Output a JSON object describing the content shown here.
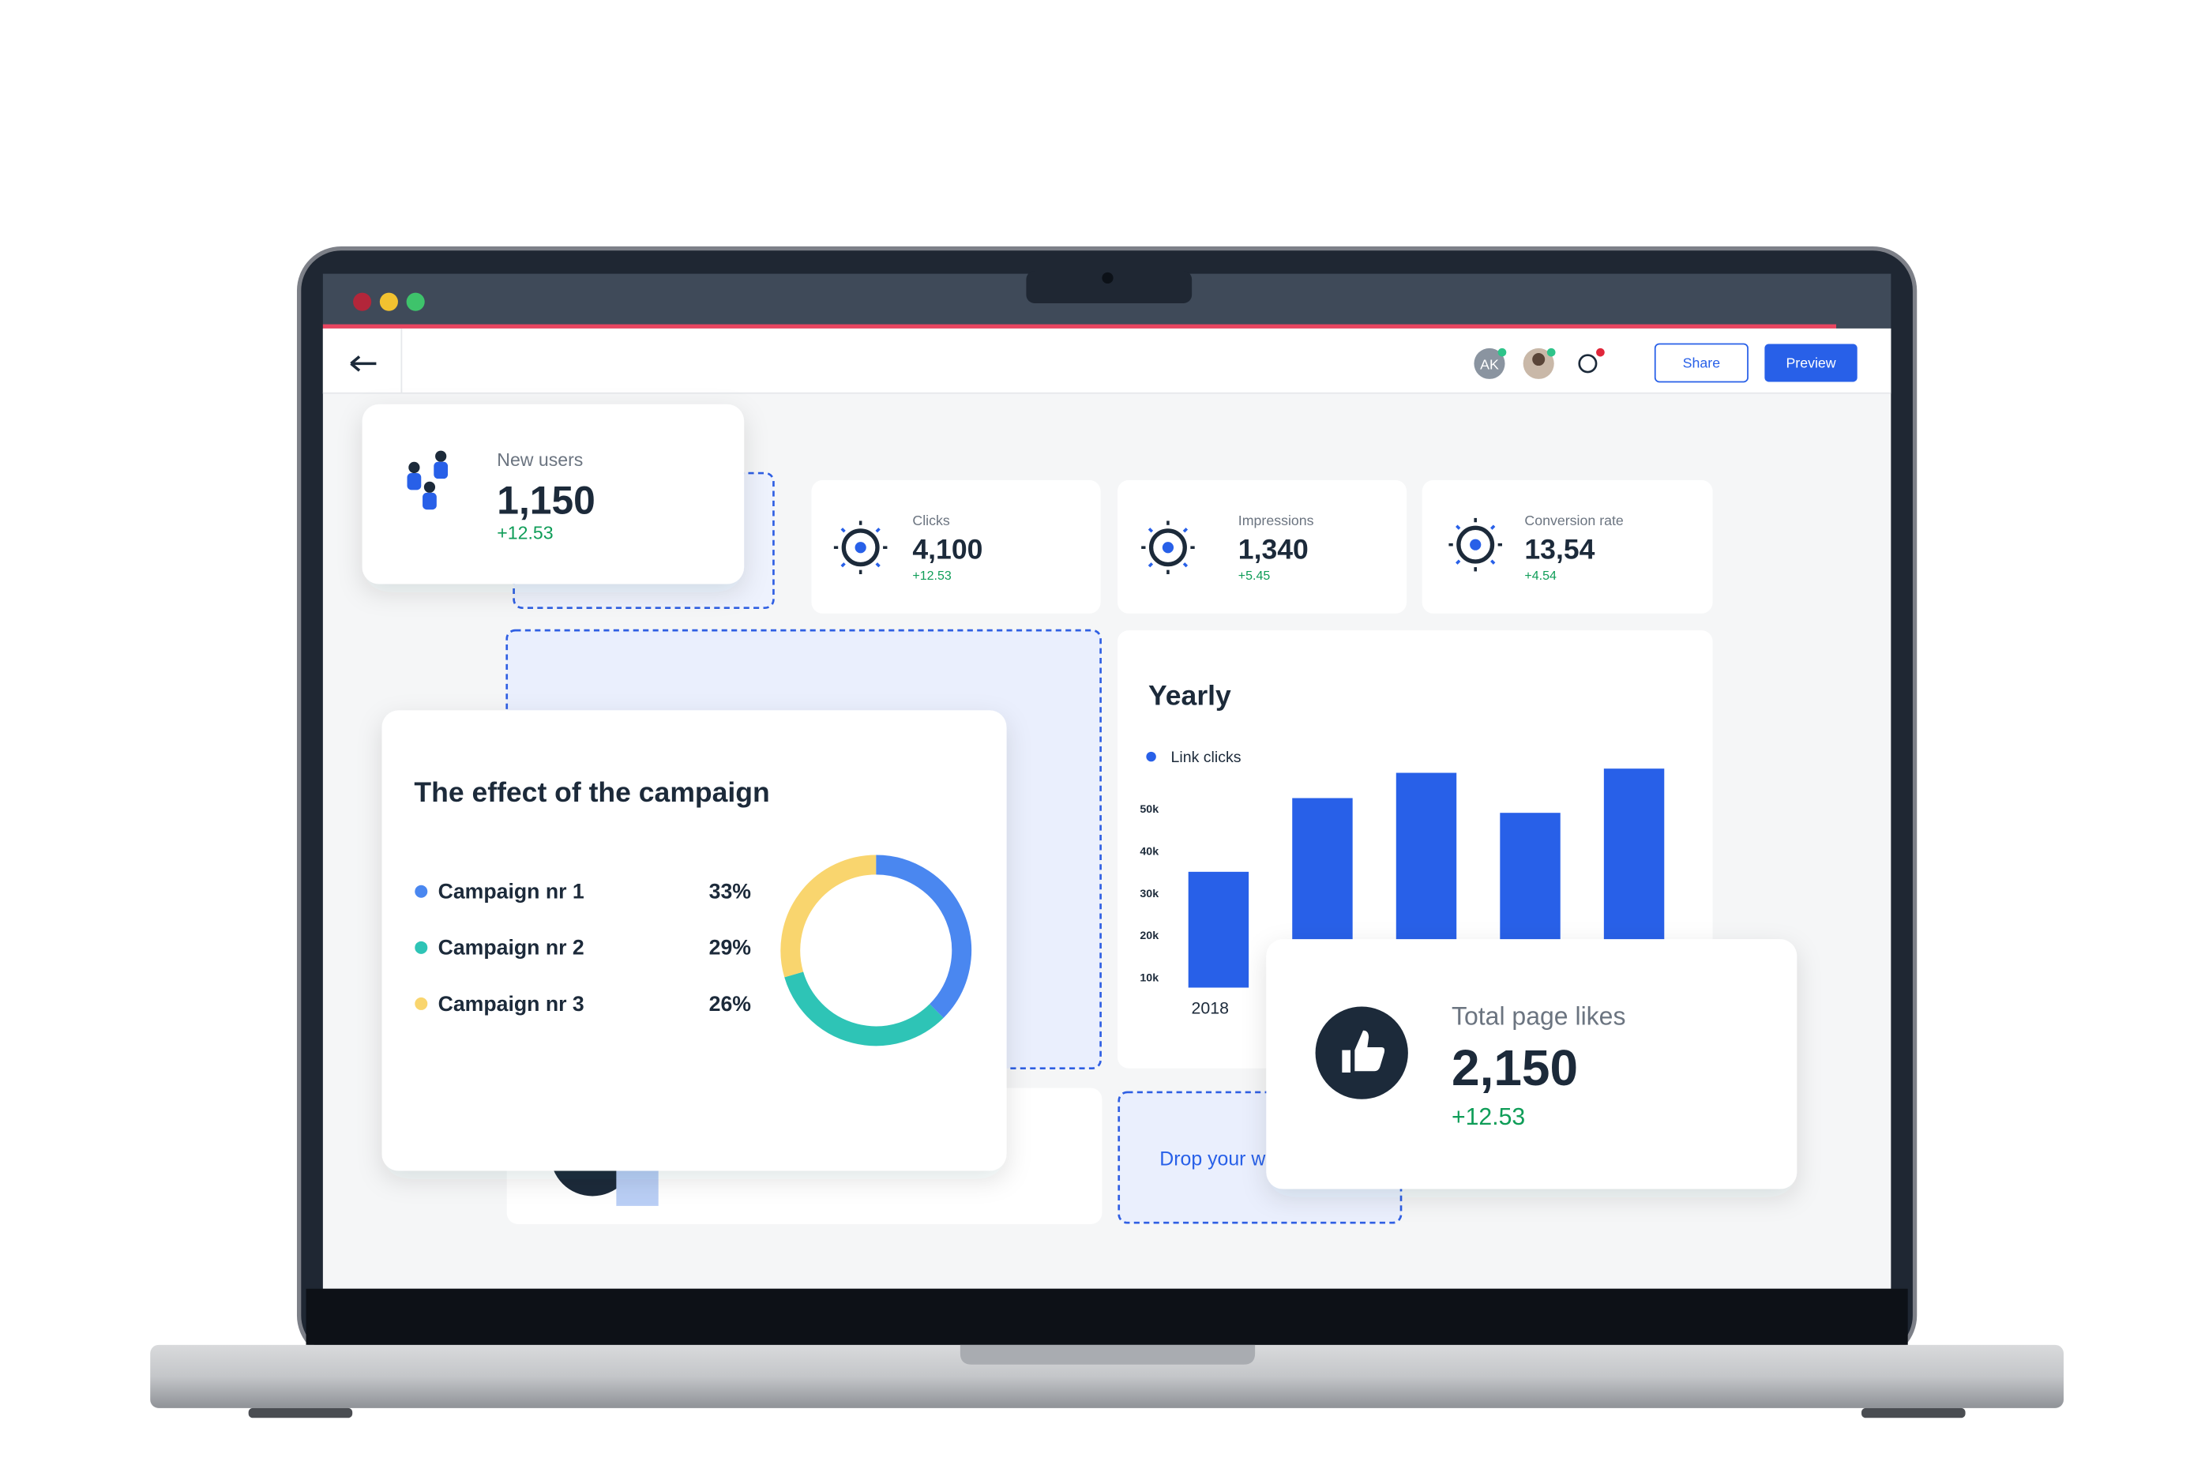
{
  "toolbar": {
    "avatar": "AK",
    "share": "Share",
    "preview": "Preview"
  },
  "metrics": [
    {
      "label": "New users",
      "value": "1,150",
      "change": "+12.53"
    },
    {
      "label": "Clicks",
      "value": "4,100",
      "change": "+12.53"
    },
    {
      "label": "Impressions",
      "value": "1,340",
      "change": "+5.45"
    },
    {
      "label": "Conversion rate",
      "value": "13,54",
      "change": "+4.54"
    },
    {
      "label": "Total page likes",
      "value": "2,150",
      "change": "+12.53"
    }
  ],
  "drop_zone": "Drop your w",
  "chart_data": [
    {
      "type": "pie",
      "title": "The effect of the campaign",
      "categories": [
        "Campaign nr 1",
        "Campaign nr 2",
        "Campaign nr 3"
      ],
      "values": [
        33,
        29,
        26
      ],
      "value_labels": [
        "33%",
        "29%",
        "26%"
      ],
      "colors": [
        "#4a87f0",
        "#2ec4b6",
        "#f9d56e"
      ]
    },
    {
      "type": "bar",
      "title": "Yearly",
      "categories": [
        "2018",
        null,
        null,
        null,
        null
      ],
      "series": [
        {
          "name": "Link clicks",
          "color": "#2860e8",
          "values": [
            35000,
            52500,
            58500,
            49000,
            59500
          ]
        }
      ],
      "ylim": [
        7500,
        62500
      ],
      "yticks": [
        {
          "value": 10000,
          "label": "10k"
        },
        {
          "value": 20000,
          "label": "20k"
        },
        {
          "value": 30000,
          "label": "30k"
        },
        {
          "value": 40000,
          "label": "40k"
        },
        {
          "value": 50000,
          "label": "50k"
        }
      ]
    }
  ]
}
